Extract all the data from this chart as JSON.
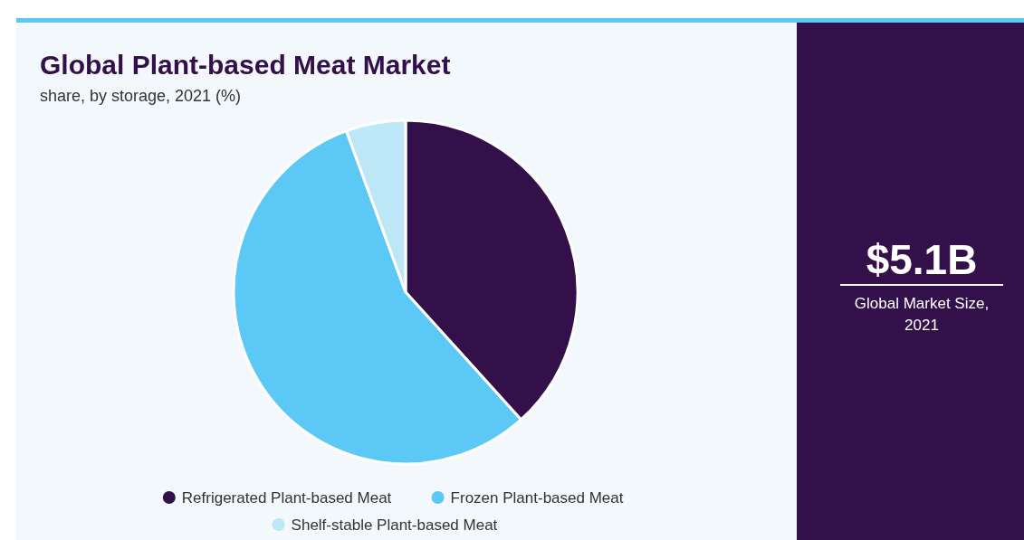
{
  "chart_data": {
    "type": "pie",
    "title": "Global Plant-based Meat Market",
    "subtitle": "share, by storage, 2021 (%)",
    "categories": [
      "Refrigerated Plant-based Meat",
      "Frozen Plant-based Meat",
      "Shelf-stable Plant-based Meat"
    ],
    "values": [
      38.3,
      56.1,
      5.6
    ],
    "colors": [
      "#33104a",
      "#5bc8f5",
      "#bde6f7"
    ],
    "legend": "bottom",
    "annotations": [
      "$5.1B",
      "Global Market Size, 2021"
    ]
  }
}
